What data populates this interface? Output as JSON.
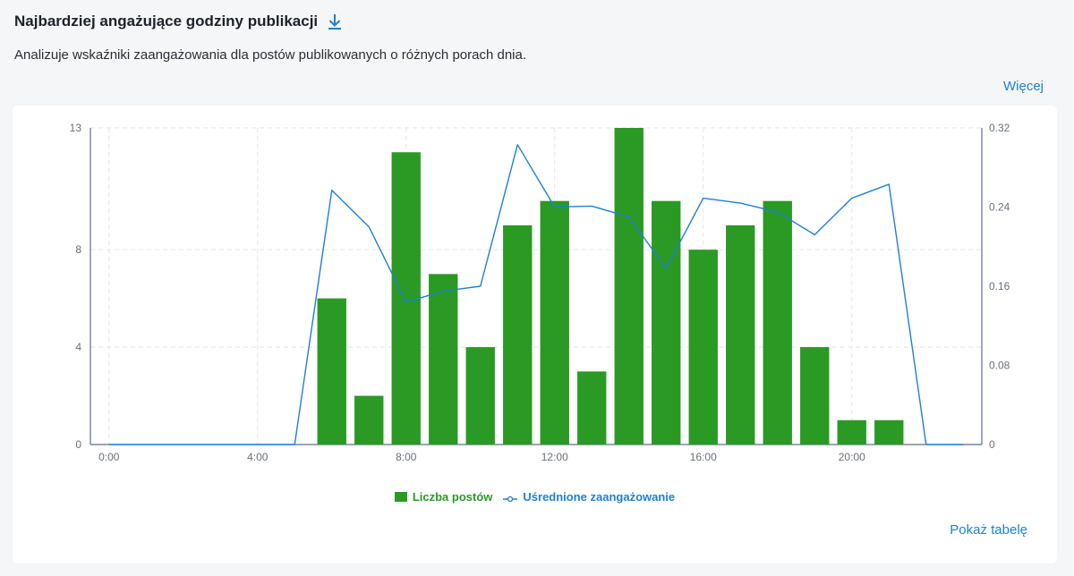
{
  "header": {
    "title": "Najbardziej angażujące godziny publikacji",
    "subtitle": "Analizuje wskaźniki zaangażowania dla postów publikowanych o różnych porach dnia.",
    "more_label": "Więcej"
  },
  "footer": {
    "table_label": "Pokaż tabelę"
  },
  "colors": {
    "bar": "#2a9a24",
    "line": "#1f7fd4",
    "accent": "#1f7fd4"
  },
  "icons": {
    "download": "download-icon"
  },
  "chart_data": {
    "type": "bar",
    "x": [
      0,
      1,
      2,
      3,
      4,
      5,
      6,
      7,
      8,
      9,
      10,
      11,
      12,
      13,
      14,
      15,
      16,
      17,
      18,
      19,
      20,
      21,
      22,
      23
    ],
    "x_tick_labels": [
      "0:00",
      "4:00",
      "8:00",
      "12:00",
      "16:00",
      "20:00"
    ],
    "x_tick_positions": [
      0,
      4,
      8,
      12,
      16,
      20
    ],
    "series": [
      {
        "name": "Liczba postów",
        "type": "bar",
        "axis": "left",
        "values": [
          0,
          0,
          0,
          0,
          0,
          0,
          6,
          2,
          12,
          7,
          4,
          9,
          10,
          3,
          13,
          10,
          8,
          9,
          10,
          4,
          1,
          1,
          0,
          0
        ]
      },
      {
        "name": "Uśrednione zaangażowanie",
        "type": "line",
        "axis": "right",
        "values": [
          0,
          0,
          0,
          0,
          0,
          0,
          0.257,
          0.22,
          0.144,
          0.155,
          0.16,
          0.303,
          0.24,
          0.241,
          0.23,
          0.178,
          0.249,
          0.244,
          0.235,
          0.212,
          0.249,
          0.263,
          0,
          0
        ]
      }
    ],
    "y_left": {
      "ticks": [
        0,
        4,
        8,
        13
      ],
      "ylim": [
        0,
        13
      ]
    },
    "y_right": {
      "ticks": [
        "0",
        "0.08",
        "0.16",
        "0.24",
        "0.32"
      ],
      "tick_values": [
        0,
        0.08,
        0.16,
        0.24,
        0.32
      ],
      "ylim": [
        0,
        0.32
      ]
    },
    "grid": true,
    "legend_position": "bottom-center"
  }
}
